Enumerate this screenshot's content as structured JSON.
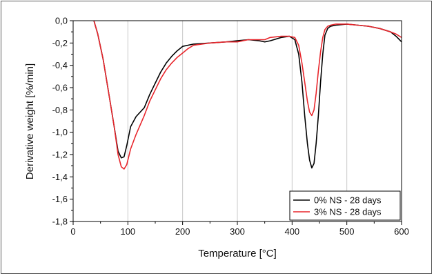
{
  "chart_data": {
    "type": "line",
    "xlabel": "Temperature [°C]",
    "ylabel": "Derivative weight [%/min]",
    "xlim": [
      0,
      600
    ],
    "ylim": [
      -1.8,
      0.0
    ],
    "x_ticks": [
      "0",
      "100",
      "200",
      "300",
      "400",
      "500",
      "600"
    ],
    "y_ticks": [
      "0,0",
      "-0,2",
      "-0,4",
      "-0,6",
      "-0,8",
      "-1,0",
      "-1,2",
      "-1,4",
      "-1,6",
      "-1,8"
    ],
    "vertical_gridlines_at": [
      100,
      200,
      300,
      400,
      500
    ],
    "legend_position": "bottom-right",
    "series": [
      {
        "name": "0% NS - 28 days",
        "color": "#000000",
        "x": [
          38,
          45,
          55,
          65,
          75,
          82,
          88,
          93,
          98,
          105,
          115,
          130,
          140,
          150,
          160,
          170,
          180,
          190,
          200,
          220,
          250,
          280,
          300,
          320,
          340,
          350,
          360,
          380,
          395,
          405,
          412,
          418,
          423,
          428,
          432,
          436,
          440,
          444,
          448,
          452,
          456,
          460,
          465,
          470,
          480,
          500,
          520,
          540,
          560,
          580,
          590,
          600
        ],
        "y": [
          0.0,
          -0.12,
          -0.35,
          -0.65,
          -0.95,
          -1.17,
          -1.23,
          -1.22,
          -1.12,
          -0.95,
          -0.86,
          -0.78,
          -0.66,
          -0.56,
          -0.46,
          -0.38,
          -0.32,
          -0.27,
          -0.23,
          -0.21,
          -0.2,
          -0.19,
          -0.18,
          -0.17,
          -0.18,
          -0.19,
          -0.18,
          -0.15,
          -0.14,
          -0.17,
          -0.3,
          -0.55,
          -0.85,
          -1.1,
          -1.25,
          -1.32,
          -1.28,
          -1.1,
          -0.85,
          -0.55,
          -0.3,
          -0.13,
          -0.07,
          -0.05,
          -0.04,
          -0.03,
          -0.04,
          -0.05,
          -0.07,
          -0.1,
          -0.14,
          -0.19
        ]
      },
      {
        "name": "3% NS - 28 days",
        "color": "#e8262c",
        "x": [
          38,
          45,
          55,
          65,
          75,
          82,
          88,
          93,
          98,
          105,
          115,
          130,
          140,
          150,
          160,
          170,
          180,
          190,
          200,
          210,
          220,
          250,
          280,
          300,
          320,
          340,
          350,
          360,
          380,
          395,
          405,
          412,
          418,
          423,
          428,
          432,
          436,
          440,
          444,
          448,
          452,
          456,
          460,
          465,
          470,
          480,
          500,
          520,
          540,
          560,
          580,
          590,
          600
        ],
        "y": [
          0.0,
          -0.12,
          -0.35,
          -0.65,
          -0.95,
          -1.2,
          -1.31,
          -1.33,
          -1.29,
          -1.15,
          -1.02,
          -0.85,
          -0.72,
          -0.62,
          -0.52,
          -0.44,
          -0.38,
          -0.33,
          -0.29,
          -0.25,
          -0.22,
          -0.2,
          -0.19,
          -0.19,
          -0.17,
          -0.17,
          -0.17,
          -0.15,
          -0.14,
          -0.14,
          -0.15,
          -0.22,
          -0.38,
          -0.55,
          -0.72,
          -0.82,
          -0.85,
          -0.8,
          -0.65,
          -0.45,
          -0.28,
          -0.15,
          -0.08,
          -0.05,
          -0.04,
          -0.03,
          -0.03,
          -0.04,
          -0.05,
          -0.07,
          -0.1,
          -0.12,
          -0.15
        ]
      }
    ]
  }
}
